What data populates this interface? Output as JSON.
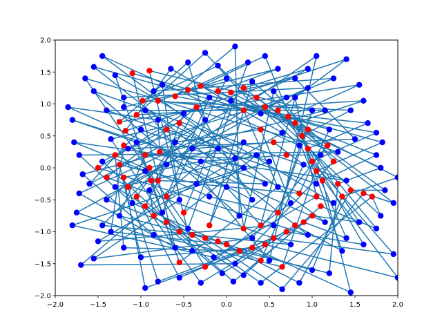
{
  "chart_data": {
    "type": "scatter",
    "xlim": [
      -2,
      2
    ],
    "ylim": [
      -2,
      2
    ],
    "x_ticks": [
      -2,
      -1.5,
      -1,
      -0.5,
      0,
      0.5,
      1,
      1.5,
      2
    ],
    "y_ticks": [
      -2,
      -1.5,
      -1,
      -0.5,
      0,
      0.5,
      1,
      1.5,
      2
    ],
    "x_tick_labels": [
      "−2.0",
      "−1.5",
      "−1.0",
      "−0.5",
      "0.0",
      "0.5",
      "1.0",
      "1.5",
      "2.0"
    ],
    "y_tick_labels": [
      "−2.0",
      "−1.5",
      "−1.0",
      "−0.5",
      "0.0",
      "0.5",
      "1.0",
      "1.5",
      "2.0"
    ],
    "grid": false,
    "colors": {
      "points_a": "#ff0000",
      "points_b": "#0000ff",
      "lines": "#1f77b4"
    },
    "series": [
      {
        "color": "#ff0000",
        "points": [
          [
            -1.18,
            0.58
          ],
          [
            -1.25,
            0.72
          ],
          [
            -1.05,
            0.83
          ],
          [
            -0.98,
            1.05
          ],
          [
            -0.8,
            1.05
          ],
          [
            -0.6,
            1.12
          ],
          [
            -0.45,
            1.22
          ],
          [
            -0.3,
            1.28
          ],
          [
            -0.1,
            1.2
          ],
          [
            0.05,
            1.18
          ],
          [
            0.2,
            1.25
          ],
          [
            0.35,
            1.1
          ],
          [
            0.45,
            0.95
          ],
          [
            0.6,
            0.9
          ],
          [
            0.72,
            0.8
          ],
          [
            0.8,
            0.7
          ],
          [
            0.88,
            0.5
          ],
          [
            0.95,
            0.3
          ],
          [
            1.0,
            0.1
          ],
          [
            1.05,
            -0.05
          ],
          [
            1.12,
            -0.2
          ],
          [
            1.3,
            -0.25
          ],
          [
            1.35,
            -0.45
          ],
          [
            1.45,
            -0.35
          ],
          [
            1.6,
            -0.4
          ],
          [
            1.7,
            -0.45
          ],
          [
            1.1,
            -0.6
          ],
          [
            1.0,
            -0.75
          ],
          [
            0.9,
            -0.85
          ],
          [
            0.8,
            -0.9
          ],
          [
            0.7,
            -1.0
          ],
          [
            0.55,
            -1.1
          ],
          [
            0.45,
            -1.2
          ],
          [
            0.3,
            -1.25
          ],
          [
            0.15,
            -1.3
          ],
          [
            0.0,
            -1.2
          ],
          [
            -0.1,
            -1.15
          ],
          [
            -0.25,
            -1.1
          ],
          [
            -0.4,
            -1.05
          ],
          [
            -0.55,
            -1.0
          ],
          [
            -0.7,
            -0.85
          ],
          [
            -0.85,
            -0.75
          ],
          [
            -0.95,
            -0.6
          ],
          [
            -1.05,
            -0.45
          ],
          [
            -1.15,
            -0.3
          ],
          [
            -1.2,
            -0.15
          ],
          [
            -1.25,
            0.05
          ],
          [
            -1.3,
            0.2
          ],
          [
            -1.2,
            0.35
          ],
          [
            -0.95,
            0.2
          ],
          [
            -0.9,
            0.0
          ],
          [
            -0.88,
            -0.2
          ],
          [
            -0.7,
            0.6
          ],
          [
            -0.55,
            0.7
          ],
          [
            -0.35,
            0.95
          ],
          [
            0.2,
            0.9
          ],
          [
            0.4,
            0.6
          ],
          [
            0.55,
            0.4
          ],
          [
            0.7,
            0.2
          ],
          [
            0.85,
            -0.4
          ],
          [
            0.6,
            -0.7
          ],
          [
            0.4,
            -0.9
          ],
          [
            0.2,
            -0.95
          ],
          [
            -0.2,
            -0.9
          ],
          [
            -0.5,
            -0.7
          ],
          [
            -0.7,
            -0.45
          ],
          [
            -0.8,
            -0.2
          ],
          [
            -0.78,
            0.25
          ],
          [
            -0.55,
            -1.48
          ],
          [
            -0.25,
            -1.55
          ],
          [
            0.4,
            -1.45
          ],
          [
            0.65,
            -1.55
          ],
          [
            -1.1,
            1.48
          ],
          [
            -0.9,
            1.52
          ],
          [
            1.05,
            -0.45
          ],
          [
            1.25,
            0.1
          ],
          [
            1.18,
            0.35
          ],
          [
            0.95,
            0.6
          ],
          [
            -1.4,
            -0.15
          ],
          [
            -1.5,
            0.0
          ]
        ]
      },
      {
        "color": "#0000ff",
        "points": [
          [
            -1.85,
            0.95
          ],
          [
            -1.8,
            0.75
          ],
          [
            -1.78,
            0.4
          ],
          [
            -1.72,
            0.2
          ],
          [
            -1.68,
            -0.1
          ],
          [
            -1.72,
            -0.4
          ],
          [
            -1.75,
            -0.7
          ],
          [
            -1.8,
            -0.9
          ],
          [
            -1.7,
            -1.52
          ],
          [
            -1.55,
            -1.42
          ],
          [
            -1.5,
            -1.15
          ],
          [
            -1.45,
            -0.9
          ],
          [
            -1.55,
            1.58
          ],
          [
            -1.45,
            1.75
          ],
          [
            -1.3,
            1.45
          ],
          [
            -1.55,
            1.2
          ],
          [
            -1.65,
            1.4
          ],
          [
            -1.4,
            0.9
          ],
          [
            -1.2,
            1.1
          ],
          [
            -1.15,
            0.3
          ],
          [
            -1.0,
            0.6
          ],
          [
            -0.95,
            0.9
          ],
          [
            -0.75,
            1.3
          ],
          [
            -0.65,
            1.55
          ],
          [
            -0.45,
            1.65
          ],
          [
            -0.25,
            1.8
          ],
          [
            -0.1,
            1.6
          ],
          [
            0.0,
            1.4
          ],
          [
            0.1,
            1.9
          ],
          [
            0.25,
            1.65
          ],
          [
            0.45,
            1.75
          ],
          [
            0.6,
            1.55
          ],
          [
            0.8,
            1.4
          ],
          [
            0.95,
            1.55
          ],
          [
            1.05,
            1.75
          ],
          [
            1.25,
            1.4
          ],
          [
            1.4,
            1.7
          ],
          [
            1.55,
            1.3
          ],
          [
            1.6,
            1.05
          ],
          [
            1.45,
            0.9
          ],
          [
            1.65,
            0.7
          ],
          [
            1.75,
            0.55
          ],
          [
            1.82,
            0.4
          ],
          [
            1.75,
            0.2
          ],
          [
            1.8,
            0.0
          ],
          [
            2.0,
            -0.15
          ],
          [
            1.85,
            -0.35
          ],
          [
            1.95,
            -0.55
          ],
          [
            1.8,
            -0.75
          ],
          [
            1.75,
            -0.95
          ],
          [
            1.55,
            -0.85
          ],
          [
            1.4,
            -1.1
          ],
          [
            1.35,
            -1.3
          ],
          [
            1.6,
            -1.2
          ],
          [
            1.95,
            -1.35
          ],
          [
            2.0,
            -1.72
          ],
          [
            1.45,
            -1.95
          ],
          [
            1.2,
            -1.65
          ],
          [
            1.0,
            -1.6
          ],
          [
            0.85,
            -1.8
          ],
          [
            0.65,
            -1.9
          ],
          [
            0.4,
            -1.8
          ],
          [
            0.2,
            -1.68
          ],
          [
            0.08,
            -1.78
          ],
          [
            -0.05,
            -1.65
          ],
          [
            -0.3,
            -1.8
          ],
          [
            -0.55,
            -1.72
          ],
          [
            -0.8,
            -1.78
          ],
          [
            -0.95,
            -1.88
          ],
          [
            -1.0,
            -1.4
          ],
          [
            -1.2,
            -1.25
          ],
          [
            -1.35,
            -1.0
          ],
          [
            -1.25,
            -0.75
          ],
          [
            -1.4,
            -0.5
          ],
          [
            -1.3,
            -0.3
          ],
          [
            -1.45,
            0.1
          ],
          [
            -1.35,
            0.45
          ],
          [
            -0.9,
            -0.35
          ],
          [
            -0.7,
            0.05
          ],
          [
            -0.6,
            0.4
          ],
          [
            -0.4,
            0.3
          ],
          [
            -0.3,
            0.1
          ],
          [
            -0.35,
            -0.25
          ],
          [
            -0.2,
            -0.45
          ],
          [
            0.0,
            -0.3
          ],
          [
            0.1,
            0.15
          ],
          [
            0.2,
            0.4
          ],
          [
            0.35,
            0.2
          ],
          [
            0.5,
            0.1
          ],
          [
            0.45,
            -0.25
          ],
          [
            0.3,
            -0.5
          ],
          [
            0.6,
            -0.3
          ],
          [
            0.75,
            -0.55
          ],
          [
            0.9,
            0.05
          ],
          [
            1.1,
            0.2
          ],
          [
            1.2,
            0.6
          ],
          [
            1.0,
            0.9
          ],
          [
            0.8,
            1.1
          ],
          [
            0.55,
            1.2
          ],
          [
            0.3,
            1.35
          ],
          [
            0.05,
            1.05
          ],
          [
            -0.2,
            1.1
          ],
          [
            -0.5,
            0.85
          ],
          [
            -0.8,
            0.75
          ],
          [
            -1.05,
            0.4
          ],
          [
            -0.95,
            -0.05
          ],
          [
            -1.1,
            -0.55
          ],
          [
            -0.85,
            -1.05
          ],
          [
            -0.6,
            -1.25
          ],
          [
            -0.4,
            -1.3
          ],
          [
            -0.15,
            -1.4
          ],
          [
            0.1,
            -1.5
          ],
          [
            0.3,
            -1.1
          ],
          [
            0.55,
            -0.9
          ],
          [
            0.75,
            -1.2
          ],
          [
            0.95,
            -1.05
          ],
          [
            1.15,
            -0.85
          ],
          [
            1.25,
            -0.55
          ],
          [
            1.4,
            -0.2
          ],
          [
            1.3,
            0.25
          ],
          [
            1.15,
            0.9
          ],
          [
            0.95,
            1.25
          ],
          [
            0.7,
            1.1
          ],
          [
            0.2,
            0.0
          ],
          [
            -0.1,
            0.3
          ],
          [
            -0.55,
            -0.5
          ],
          [
            0.65,
            0.55
          ],
          [
            -0.25,
            0.75
          ],
          [
            0.4,
            0.85
          ],
          [
            0.85,
            0.35
          ],
          [
            -0.75,
            -0.7
          ],
          [
            0.15,
            -0.75
          ],
          [
            -0.45,
            -0.95
          ],
          [
            1.05,
            -0.25
          ],
          [
            -1.2,
            0.95
          ],
          [
            1.5,
            0.45
          ],
          [
            -1.6,
            -0.25
          ],
          [
            0.5,
            -1.45
          ],
          [
            -0.85,
            1.2
          ]
        ]
      }
    ]
  }
}
